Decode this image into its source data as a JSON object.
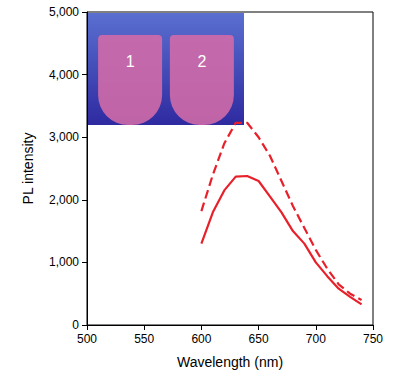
{
  "chart_data": {
    "type": "line",
    "xlabel": "Wavelength (nm)",
    "ylabel": "PL intensity",
    "annotations": [
      "1",
      "2"
    ],
    "x": [
      600,
      610,
      620,
      630,
      640,
      650,
      660,
      670,
      680,
      690,
      700,
      710,
      720,
      730,
      740
    ],
    "series": [
      {
        "color": "#e8202a",
        "line_style": "solid",
        "values": [
          1300,
          1800,
          2150,
          2370,
          2380,
          2300,
          2050,
          1800,
          1500,
          1300,
          1000,
          780,
          580,
          450,
          330
        ]
      },
      {
        "color": "#e8202a",
        "line_style": "dashed",
        "values": [
          1820,
          2400,
          2900,
          3230,
          3230,
          3000,
          2700,
          2300,
          1900,
          1550,
          1200,
          900,
          650,
          500,
          400
        ]
      }
    ],
    "xlim": [
      500,
      750
    ],
    "xticks": [
      500,
      550,
      600,
      650,
      700,
      750
    ],
    "ylim": [
      0,
      5000
    ],
    "yticks": [
      0,
      1000,
      2000,
      3000,
      4000,
      5000
    ],
    "grid": false
  }
}
